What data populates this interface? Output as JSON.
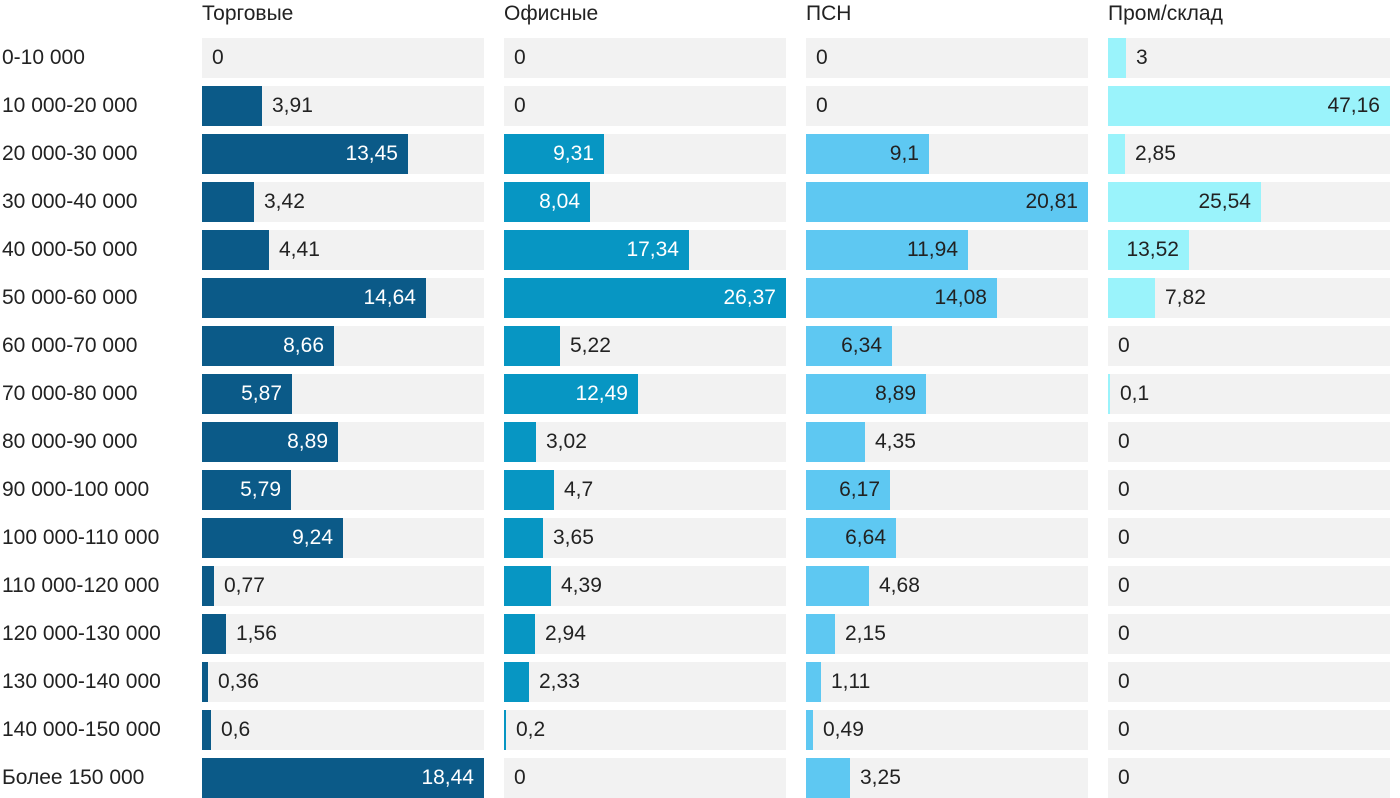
{
  "chart_data": {
    "type": "bar",
    "orientation": "horizontal",
    "layout": "small-multiples",
    "categories": [
      "0-10 000",
      "10 000-20 000",
      "20 000-30 000",
      "30 000-40 000",
      "40 000-50 000",
      "50 000-60 000",
      "60 000-70 000",
      "70 000-80 000",
      "80 000-90 000",
      "90 000-100 000",
      "100 000-110 000",
      "110 000-120 000",
      "120 000-130 000",
      "130 000-140 000",
      "140 000-150 000",
      "Более 150 000"
    ],
    "series": [
      {
        "name": "Торговые",
        "color": "#0b5a88",
        "text_inside_color": "#ffffff",
        "max": 18.44,
        "values": [
          0,
          3.91,
          13.45,
          3.42,
          4.41,
          14.64,
          8.66,
          5.87,
          8.89,
          5.79,
          9.24,
          0.77,
          1.56,
          0.36,
          0.6,
          18.44
        ],
        "labels": [
          "0",
          "3,91",
          "13,45",
          "3,42",
          "4,41",
          "14,64",
          "8,66",
          "5,87",
          "8,89",
          "5,79",
          "9,24",
          "0,77",
          "1,56",
          "0,36",
          "0,6",
          "18,44"
        ]
      },
      {
        "name": "Офисные",
        "color": "#0796c3",
        "text_inside_color": "#ffffff",
        "max": 26.37,
        "values": [
          0,
          0,
          9.31,
          8.04,
          17.34,
          26.37,
          5.22,
          12.49,
          3.02,
          4.7,
          3.65,
          4.39,
          2.94,
          2.33,
          0.2,
          0
        ],
        "labels": [
          "0",
          "0",
          "9,31",
          "8,04",
          "17,34",
          "26,37",
          "5,22",
          "12,49",
          "3,02",
          "4,7",
          "3,65",
          "4,39",
          "2,94",
          "2,33",
          "0,2",
          "0"
        ]
      },
      {
        "name": "ПСН",
        "color": "#5ec8f2",
        "text_inside_color": "#222222",
        "max": 20.81,
        "values": [
          0,
          0,
          9.1,
          20.81,
          11.94,
          14.08,
          6.34,
          8.89,
          4.35,
          6.17,
          6.64,
          4.68,
          2.15,
          1.11,
          0.49,
          3.25
        ],
        "labels": [
          "0",
          "0",
          "9,1",
          "20,81",
          "11,94",
          "14,08",
          "6,34",
          "8,89",
          "4,35",
          "6,17",
          "6,64",
          "4,68",
          "2,15",
          "1,11",
          "0,49",
          "3,25"
        ]
      },
      {
        "name": "Пром/склад",
        "color": "#9af3fb",
        "text_inside_color": "#222222",
        "max": 47.16,
        "values": [
          3,
          47.16,
          2.85,
          25.54,
          13.52,
          7.82,
          0,
          0.1,
          0,
          0,
          0,
          0,
          0,
          0,
          0,
          0
        ],
        "labels": [
          "3",
          "47,16",
          "2,85",
          "25,54",
          "13,52",
          "7,82",
          "0",
          "0,1",
          "0",
          "0",
          "0",
          "0",
          "0",
          "0",
          "0",
          "0"
        ]
      }
    ],
    "track_color": "#f2f2f2",
    "legend": "none",
    "grid": false
  }
}
